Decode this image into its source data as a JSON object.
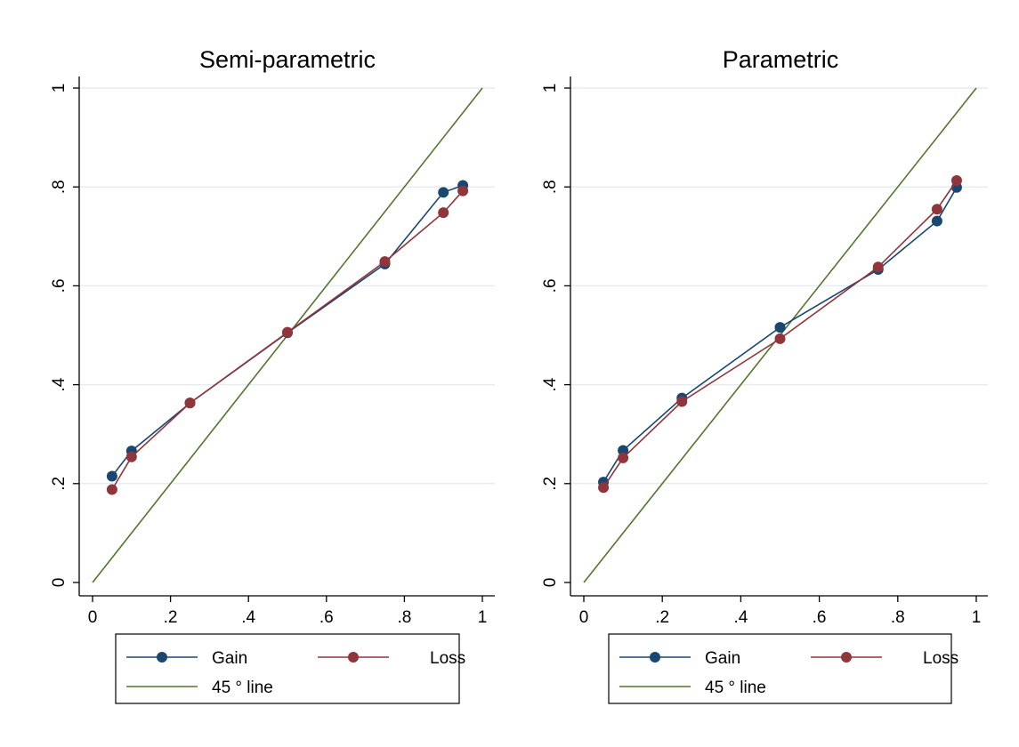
{
  "chart_data": [
    {
      "type": "line",
      "title": "Semi-parametric",
      "xlabel": "",
      "ylabel": "",
      "xlim": [
        0,
        1
      ],
      "ylim": [
        0,
        1
      ],
      "x_ticks": [
        "0",
        ".2",
        ".4",
        ".6",
        ".8",
        "1"
      ],
      "y_ticks": [
        "0",
        ".2",
        ".4",
        ".6",
        ".8",
        "1"
      ],
      "grid": true,
      "legend_placement": "bottom",
      "series": [
        {
          "name": "Gain",
          "color": "#1a476f",
          "marker": "circle",
          "x": [
            0.05,
            0.1,
            0.25,
            0.5,
            0.75,
            0.9,
            0.95
          ],
          "y": [
            0.215,
            0.266,
            0.363,
            0.505,
            0.644,
            0.789,
            0.803
          ]
        },
        {
          "name": "Loss",
          "color": "#90353b",
          "marker": "circle",
          "x": [
            0.05,
            0.1,
            0.25,
            0.5,
            0.75,
            0.9,
            0.95
          ],
          "y": [
            0.188,
            0.254,
            0.363,
            0.506,
            0.649,
            0.748,
            0.792
          ]
        },
        {
          "name": "45 ° line",
          "color": "#55752f",
          "marker": "none",
          "x": [
            0,
            1
          ],
          "y": [
            0,
            1
          ]
        }
      ]
    },
    {
      "type": "line",
      "title": "Parametric",
      "xlabel": "",
      "ylabel": "",
      "xlim": [
        0,
        1
      ],
      "ylim": [
        0,
        1
      ],
      "x_ticks": [
        "0",
        ".2",
        ".4",
        ".6",
        ".8",
        "1"
      ],
      "y_ticks": [
        "0",
        ".2",
        ".4",
        ".6",
        ".8",
        "1"
      ],
      "grid": true,
      "legend_placement": "bottom",
      "series": [
        {
          "name": "Gain",
          "color": "#1a476f",
          "marker": "circle",
          "x": [
            0.05,
            0.1,
            0.25,
            0.5,
            0.75,
            0.9,
            0.95
          ],
          "y": [
            0.203,
            0.267,
            0.373,
            0.516,
            0.633,
            0.731,
            0.799
          ]
        },
        {
          "name": "Loss",
          "color": "#90353b",
          "marker": "circle",
          "x": [
            0.05,
            0.1,
            0.25,
            0.5,
            0.75,
            0.9,
            0.95
          ],
          "y": [
            0.192,
            0.252,
            0.366,
            0.493,
            0.638,
            0.755,
            0.813
          ]
        },
        {
          "name": "45 ° line",
          "color": "#55752f",
          "marker": "none",
          "x": [
            0,
            1
          ],
          "y": [
            0,
            1
          ]
        }
      ]
    }
  ]
}
